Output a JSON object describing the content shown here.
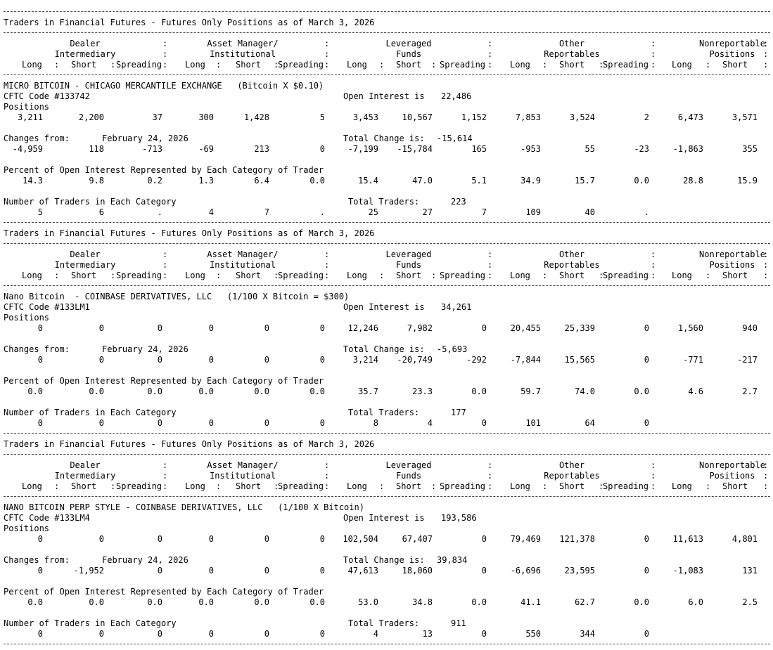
{
  "headers": {
    "row1": [
      "Dealer",
      "Asset Manager/",
      "Leveraged",
      "Other",
      "Nonreportable"
    ],
    "row2": [
      "Intermediary",
      "Institutional",
      "Funds",
      "Reportables",
      "Positions"
    ],
    "row3": [
      "Long",
      "Short",
      "Spreading",
      "Long",
      "Short",
      "Spreading",
      "Long",
      "Short",
      "Spreading",
      "Long",
      "Short",
      "Spreading",
      "Long",
      "Short"
    ]
  },
  "labels": {
    "positions": "Positions",
    "changes_from": "Changes from:",
    "total_change": "Total Change is:",
    "percent": "Percent of Open Interest Represented by Each Category of Trader",
    "number": "Number of Traders in Each Category",
    "total_traders": "Total Traders:",
    "open_interest": "Open Interest is"
  },
  "sections": [
    {
      "title": "Traders in Financial Futures - Futures Only Positions as of March 3, 2026",
      "contract": "MICRO BITCOIN - CHICAGO MERCANTILE EXCHANGE   (Bitcoin X $0.10)",
      "cftc_code": "CFTC Code #133742",
      "open_interest": "22,486",
      "positions": [
        "3,211",
        "2,200",
        "37",
        "300",
        "1,428",
        "5",
        "3,453",
        "10,567",
        "1,152",
        "7,853",
        "3,524",
        "2",
        "6,473",
        "3,571"
      ],
      "changes_date": "February 24, 2026",
      "total_change": "-15,614",
      "changes": [
        "-4,959",
        "118",
        "-713",
        "-69",
        "213",
        "0",
        "-7,199",
        "-15,784",
        "165",
        "-953",
        "55",
        "-23",
        "-1,863",
        "355"
      ],
      "percent": [
        "14.3",
        "9.8",
        "0.2",
        "1.3",
        "6.4",
        "0.0",
        "15.4",
        "47.0",
        "5.1",
        "34.9",
        "15.7",
        "0.0",
        "28.8",
        "15.9"
      ],
      "total_traders": "223",
      "traders": [
        "5",
        "6",
        ".",
        "4",
        "7",
        ".",
        "25",
        "27",
        "7",
        "109",
        "40",
        ".",
        "",
        ""
      ]
    },
    {
      "title": "Traders in Financial Futures - Futures Only Positions as of March 3, 2026",
      "contract": "Nano Bitcoin  - COINBASE DERIVATIVES, LLC   (1/100 X Bitcoin = $300)",
      "cftc_code": "CFTC Code #133LM1",
      "open_interest": "34,261",
      "positions": [
        "0",
        "0",
        "0",
        "0",
        "0",
        "0",
        "12,246",
        "7,982",
        "0",
        "20,455",
        "25,339",
        "0",
        "1,560",
        "940"
      ],
      "changes_date": "February 24, 2026",
      "total_change": "-5,693",
      "changes": [
        "0",
        "0",
        "0",
        "0",
        "0",
        "0",
        "3,214",
        "-20,749",
        "-292",
        "-7,844",
        "15,565",
        "0",
        "-771",
        "-217"
      ],
      "percent": [
        "0.0",
        "0.0",
        "0.0",
        "0.0",
        "0.0",
        "0.0",
        "35.7",
        "23.3",
        "0.0",
        "59.7",
        "74.0",
        "0.0",
        "4.6",
        "2.7"
      ],
      "total_traders": "177",
      "traders": [
        "0",
        "0",
        "0",
        "0",
        "0",
        "0",
        "8",
        "4",
        "0",
        "101",
        "64",
        "0",
        "",
        ""
      ]
    },
    {
      "title": "Traders in Financial Futures - Futures Only Positions as of March 3, 2026",
      "contract": "NANO BITCOIN PERP STYLE - COINBASE DERIVATIVES, LLC   (1/100 X Bitcoin)",
      "cftc_code": "CFTC Code #133LM4",
      "open_interest": "193,586",
      "positions": [
        "0",
        "0",
        "0",
        "0",
        "0",
        "0",
        "102,504",
        "67,407",
        "0",
        "79,469",
        "121,378",
        "0",
        "11,613",
        "4,801"
      ],
      "changes_date": "February 24, 2026",
      "total_change": "39,834",
      "changes": [
        "0",
        "-1,952",
        "0",
        "0",
        "0",
        "0",
        "47,613",
        "18,060",
        "0",
        "-6,696",
        "23,595",
        "0",
        "-1,083",
        "131"
      ],
      "percent": [
        "0.0",
        "0.0",
        "0.0",
        "0.0",
        "0.0",
        "0.0",
        "53.0",
        "34.8",
        "0.0",
        "41.1",
        "62.7",
        "0.0",
        "6.0",
        "2.5"
      ],
      "total_traders": "911",
      "traders": [
        "0",
        "0",
        "0",
        "0",
        "0",
        "0",
        "4",
        "13",
        "0",
        "550",
        "344",
        "0",
        "",
        ""
      ]
    }
  ]
}
